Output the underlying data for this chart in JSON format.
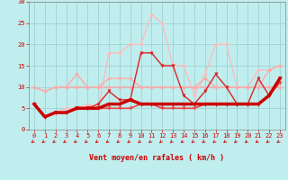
{
  "xlabel": "Vent moyen/en rafales ( km/h )",
  "xlim": [
    -0.5,
    23.5
  ],
  "ylim": [
    0,
    30
  ],
  "yticks": [
    0,
    5,
    10,
    15,
    20,
    25,
    30
  ],
  "xticks": [
    0,
    1,
    2,
    3,
    4,
    5,
    6,
    7,
    8,
    9,
    10,
    11,
    12,
    13,
    14,
    15,
    16,
    17,
    18,
    19,
    20,
    21,
    22,
    23
  ],
  "bg_color": "#c0eeee",
  "grid_color": "#99cccc",
  "lines": [
    {
      "y": [
        10,
        9,
        10,
        10,
        10,
        10,
        10,
        10,
        10,
        10,
        10,
        10,
        10,
        10,
        10,
        10,
        10,
        10,
        10,
        10,
        10,
        10,
        10,
        10
      ],
      "color": "#ffaaaa",
      "lw": 1.0,
      "marker": "D",
      "ms": 2.0,
      "zorder": 2
    },
    {
      "y": [
        6,
        3,
        4,
        5,
        5,
        6,
        5,
        18,
        18,
        20,
        20,
        27,
        25,
        15,
        15,
        8,
        13,
        20,
        20,
        10,
        10,
        14,
        14,
        15
      ],
      "color": "#ffbbbb",
      "lw": 1.0,
      "marker": "D",
      "ms": 2.0,
      "zorder": 2
    },
    {
      "y": [
        10,
        9,
        10,
        10,
        13,
        10,
        10,
        12,
        12,
        12,
        10,
        10,
        10,
        10,
        10,
        10,
        12,
        10,
        10,
        10,
        10,
        10,
        14,
        15
      ],
      "color": "#ffaaaa",
      "lw": 1.0,
      "marker": "D",
      "ms": 2.0,
      "zorder": 2
    },
    {
      "y": [
        6,
        3,
        4,
        4,
        5,
        5,
        6,
        9,
        7,
        7,
        18,
        18,
        15,
        15,
        8,
        6,
        9,
        13,
        10,
        6,
        6,
        12,
        8,
        12
      ],
      "color": "#dd2222",
      "lw": 1.0,
      "marker": "v",
      "ms": 2.5,
      "zorder": 4
    },
    {
      "y": [
        6,
        3,
        4,
        4,
        5,
        5,
        5,
        6,
        6,
        7,
        6,
        6,
        6,
        6,
        6,
        6,
        6,
        6,
        6,
        6,
        6,
        6,
        8,
        12
      ],
      "color": "#cc0000",
      "lw": 2.5,
      "marker": "v",
      "ms": 2.5,
      "zorder": 5
    },
    {
      "y": [
        6,
        3,
        4,
        4,
        5,
        5,
        5,
        5,
        5,
        5,
        6,
        6,
        5,
        5,
        5,
        5,
        6,
        6,
        6,
        6,
        6,
        6,
        8,
        11
      ],
      "color": "#ee4444",
      "lw": 1.2,
      "marker": "v",
      "ms": 2.5,
      "zorder": 4
    }
  ],
  "arrow_color": "#cc2222",
  "tick_color": "#cc0000",
  "label_color": "#cc0000",
  "xlabel_fontsize": 6,
  "tick_fontsize": 5
}
